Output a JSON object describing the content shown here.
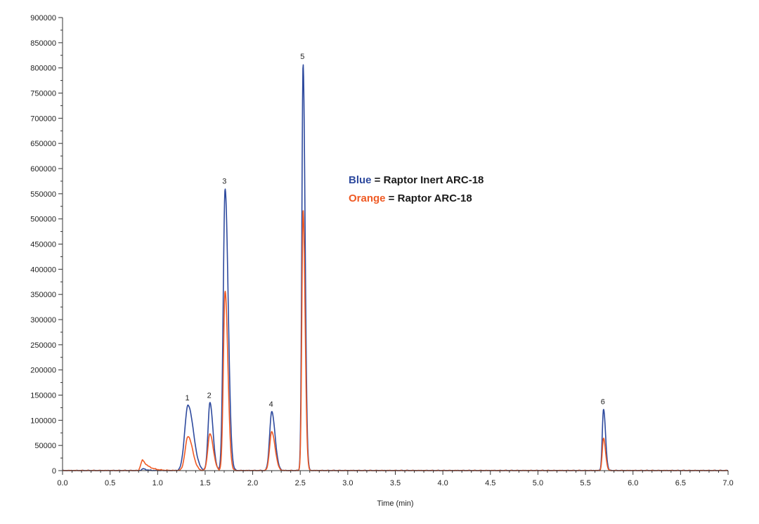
{
  "chart_data": {
    "type": "line",
    "title": "",
    "xlabel": "Time (min)",
    "ylabel": "",
    "xlim": [
      0.0,
      7.0
    ],
    "ylim": [
      0,
      900000
    ],
    "x_ticks": [
      "0.0",
      "0.5",
      "1.0",
      "1.5",
      "2.0",
      "2.5",
      "3.0",
      "3.5",
      "4.0",
      "4.5",
      "5.0",
      "5.5",
      "6.0",
      "6.5",
      "7.0"
    ],
    "y_ticks": [
      "0",
      "50000",
      "100000",
      "150000",
      "200000",
      "250000",
      "300000",
      "350000",
      "400000",
      "450000",
      "500000",
      "550000",
      "600000",
      "650000",
      "700000",
      "750000",
      "800000",
      "850000",
      "900000"
    ],
    "grid": false,
    "legend": {
      "placement": "upper-center",
      "entries": [
        {
          "key": "Blue",
          "text": " = Raptor Inert ARC-18",
          "color": "#2e4a9e"
        },
        {
          "key": "Orange",
          "text": " = Raptor ARC-18",
          "color": "#ef5a24"
        }
      ]
    },
    "peaks": [
      {
        "label": "1",
        "time": 1.32,
        "blue": 130000,
        "orange": 68000
      },
      {
        "label": "2",
        "time": 1.55,
        "blue": 135000,
        "orange": 73000
      },
      {
        "label": "3",
        "time": 1.71,
        "blue": 560000,
        "orange": 357000
      },
      {
        "label": "4",
        "time": 2.2,
        "blue": 117000,
        "orange": 77000
      },
      {
        "label": "5",
        "time": 2.53,
        "blue": 808000,
        "orange": 518000
      },
      {
        "label": "6",
        "time": 5.69,
        "blue": 122000,
        "orange": 64000
      }
    ],
    "series": [
      {
        "color": "#2e4a9e",
        "peak_widths": [
          0.035,
          0.02,
          0.02,
          0.022,
          0.013,
          0.013
        ],
        "bumps": [
          {
            "time": 0.85,
            "height": 4000,
            "width": 0.04
          }
        ]
      },
      {
        "color": "#ef5a24",
        "peak_widths": [
          0.03,
          0.022,
          0.018,
          0.022,
          0.013,
          0.013
        ],
        "bumps": [
          {
            "time": 0.84,
            "height": 22000,
            "width": 0.07
          }
        ]
      }
    ]
  }
}
